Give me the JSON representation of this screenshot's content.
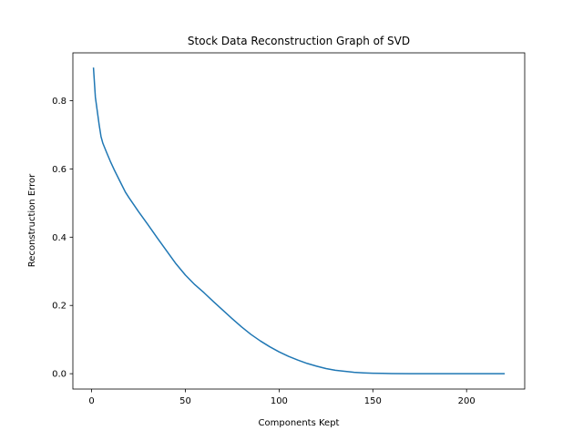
{
  "chart_data": {
    "type": "line",
    "title": "Stock Data Reconstruction Graph of SVD",
    "xlabel": "Components Kept",
    "ylabel": "Reconstruction Error",
    "xlim": [
      -10,
      231
    ],
    "ylim": [
      -0.045,
      0.94
    ],
    "xticks": [
      0,
      50,
      100,
      150,
      200
    ],
    "yticks": [
      0.0,
      0.2,
      0.4,
      0.6,
      0.8
    ],
    "xtick_labels": [
      "0",
      "50",
      "100",
      "150",
      "200"
    ],
    "ytick_labels": [
      "0.0",
      "0.2",
      "0.4",
      "0.6",
      "0.8"
    ],
    "grid": false,
    "legend": "none",
    "series": [
      {
        "color": "#1f77b4",
        "x": [
          1,
          2,
          3,
          4,
          5,
          6,
          8,
          10,
          12,
          15,
          18,
          20,
          25,
          30,
          35,
          40,
          45,
          50,
          55,
          60,
          65,
          70,
          75,
          80,
          85,
          90,
          95,
          100,
          105,
          110,
          115,
          120,
          125,
          130,
          135,
          140,
          145,
          150,
          155,
          160,
          170,
          180,
          190,
          200,
          210,
          220
        ],
        "y": [
          0.895,
          0.81,
          0.77,
          0.73,
          0.695,
          0.675,
          0.648,
          0.622,
          0.598,
          0.565,
          0.532,
          0.515,
          0.475,
          0.437,
          0.398,
          0.36,
          0.322,
          0.289,
          0.261,
          0.237,
          0.211,
          0.186,
          0.161,
          0.137,
          0.115,
          0.096,
          0.079,
          0.064,
          0.051,
          0.04,
          0.03,
          0.022,
          0.015,
          0.01,
          0.007,
          0.004,
          0.0025,
          0.0015,
          0.001,
          0.0005,
          0.0002,
          0.0001,
          0.0,
          0.0,
          0.0,
          0.0
        ]
      }
    ]
  }
}
